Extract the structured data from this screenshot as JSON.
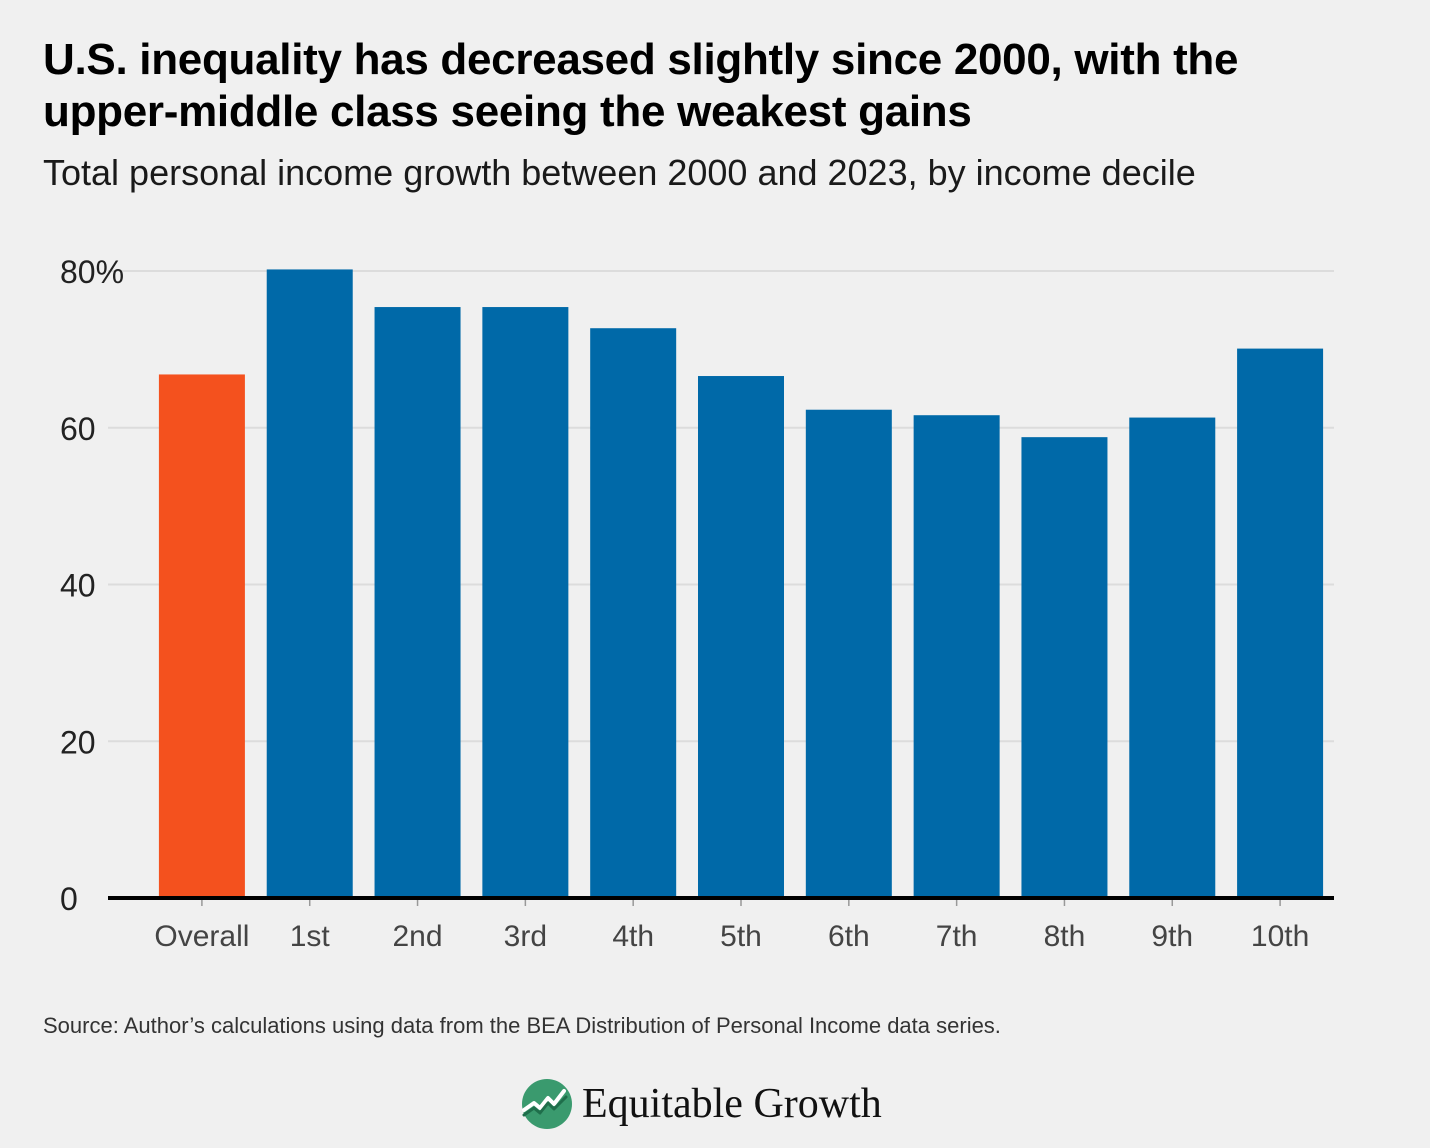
{
  "title": "U.S. inequality has decreased slightly since 2000, with the upper-middle class seeing the weakest gains",
  "subtitle": "Total personal income growth between 2000 and 2023, by income decile",
  "source": "Source: Author’s calculations using data from the BEA Distribution of Personal Income data series.",
  "logo": {
    "text": "Equitable Growth",
    "icon": "equitable-growth-logo-icon"
  },
  "colors": {
    "overall": "#f4511e",
    "decile": "#0069a8",
    "grid": "#dcdcdc",
    "axis": "#000000"
  },
  "chart_data": {
    "type": "bar",
    "categories": [
      "Overall",
      "1st",
      "2nd",
      "3rd",
      "4th",
      "5th",
      "6th",
      "7th",
      "8th",
      "9th",
      "10th"
    ],
    "values": [
      66.8,
      80.2,
      75.4,
      75.4,
      72.7,
      66.6,
      62.3,
      61.6,
      58.8,
      61.3,
      70.1
    ],
    "highlight_category": "Overall",
    "ylim": [
      0,
      80
    ],
    "yticks": [
      0,
      20,
      40,
      60,
      80
    ],
    "ytick_labels": [
      "0",
      "20",
      "40",
      "60",
      "80%"
    ],
    "xlabel": "",
    "ylabel": "",
    "grid": true
  }
}
